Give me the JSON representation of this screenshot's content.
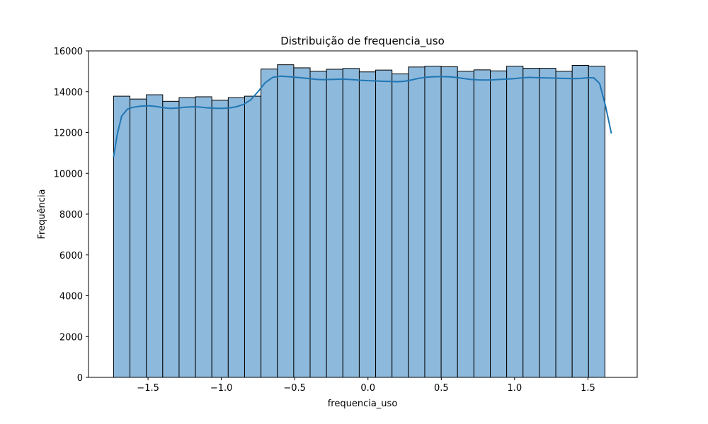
{
  "chart_data": {
    "type": "bar",
    "title": "Distribuição de frequencia_uso",
    "xlabel": "frequencia_uso",
    "ylabel": "Frequência",
    "xlim": [
      -1.906,
      1.836
    ],
    "ylim": [
      0,
      16000
    ],
    "xticks": [
      -1.5,
      -1.0,
      -0.5,
      0.0,
      0.5,
      1.0,
      1.5
    ],
    "xtick_labels": [
      "−1.5",
      "−1.0",
      "−0.5",
      "0.0",
      "0.5",
      "1.0",
      "1.5"
    ],
    "yticks": [
      0,
      2000,
      4000,
      6000,
      8000,
      10000,
      12000,
      14000,
      16000
    ],
    "ytick_labels": [
      "0",
      "2000",
      "4000",
      "6000",
      "8000",
      "10000",
      "12000",
      "14000",
      "16000"
    ],
    "grid": false,
    "bins": {
      "start": -1.735,
      "width": 0.1117,
      "counts": [
        13780,
        13640,
        13850,
        13530,
        13710,
        13750,
        13580,
        13710,
        13780,
        15110,
        15320,
        15170,
        15000,
        15100,
        15140,
        14970,
        15060,
        14870,
        15210,
        15250,
        15220,
        15000,
        15070,
        15020,
        15250,
        15150,
        15150,
        15000,
        15290,
        15250
      ]
    },
    "kde": {
      "x": [
        -1.735,
        -1.71,
        -1.68,
        -1.64,
        -1.6,
        -1.55,
        -1.5,
        -1.45,
        -1.4,
        -1.35,
        -1.3,
        -1.25,
        -1.2,
        -1.15,
        -1.1,
        -1.05,
        -1.0,
        -0.95,
        -0.9,
        -0.85,
        -0.8,
        -0.75,
        -0.7,
        -0.65,
        -0.6,
        -0.55,
        -0.5,
        -0.45,
        -0.4,
        -0.35,
        -0.3,
        -0.25,
        -0.2,
        -0.15,
        -0.1,
        -0.05,
        0.0,
        0.05,
        0.1,
        0.15,
        0.2,
        0.25,
        0.3,
        0.35,
        0.4,
        0.45,
        0.5,
        0.55,
        0.6,
        0.65,
        0.7,
        0.75,
        0.8,
        0.85,
        0.9,
        0.95,
        1.0,
        1.05,
        1.1,
        1.15,
        1.2,
        1.25,
        1.3,
        1.35,
        1.4,
        1.45,
        1.5,
        1.54,
        1.58,
        1.62,
        1.66
      ],
      "y": [
        10800,
        11900,
        12800,
        13150,
        13240,
        13290,
        13310,
        13280,
        13220,
        13180,
        13200,
        13240,
        13260,
        13250,
        13210,
        13190,
        13180,
        13200,
        13260,
        13370,
        13600,
        14000,
        14450,
        14700,
        14760,
        14740,
        14710,
        14680,
        14640,
        14600,
        14590,
        14600,
        14610,
        14610,
        14590,
        14560,
        14540,
        14530,
        14510,
        14500,
        14490,
        14510,
        14580,
        14660,
        14710,
        14730,
        14740,
        14730,
        14700,
        14650,
        14600,
        14580,
        14570,
        14580,
        14600,
        14620,
        14640,
        14680,
        14700,
        14690,
        14680,
        14670,
        14660,
        14650,
        14640,
        14650,
        14690,
        14680,
        14400,
        13300,
        11950
      ]
    },
    "colors": {
      "bar_fill": "#8db9dc",
      "bar_edge": "#000000",
      "kde_line": "#1f77b4"
    }
  }
}
